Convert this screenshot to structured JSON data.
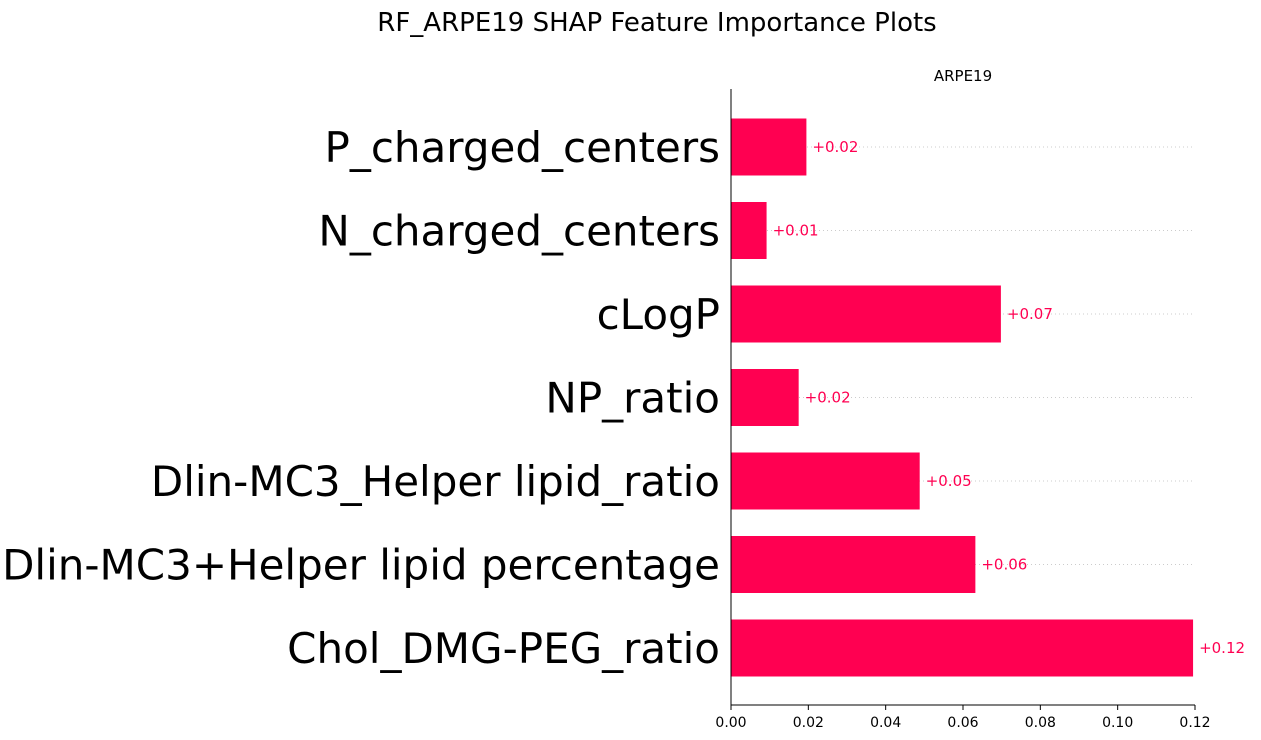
{
  "figure_title": "RF_ARPE19 SHAP Feature Importance Plots",
  "chart_data": {
    "type": "bar",
    "orientation": "horizontal",
    "title": "ARPE19",
    "xlabel": "",
    "ylabel": "",
    "categories": [
      "P_charged_centers",
      "N_charged_centers",
      "cLogP",
      "NP_ratio",
      "Dlin-MC3_Helper lipid_ratio",
      "Dlin-MC3+Helper lipid percentage",
      "Chol_DMG-PEG_ratio"
    ],
    "values": [
      0.0195,
      0.0092,
      0.0698,
      0.0175,
      0.0488,
      0.0632,
      0.1195
    ],
    "value_labels": [
      "+0.02",
      "+0.01",
      "+0.07",
      "+0.02",
      "+0.05",
      "+0.06",
      "+0.12"
    ],
    "xlim": [
      0,
      0.12
    ],
    "xticks": [
      "0.00",
      "0.02",
      "0.04",
      "0.06",
      "0.08",
      "0.10",
      "0.12"
    ],
    "grid": "dotted horizontal guide per bar",
    "legend": "none",
    "colors": {
      "bar": "#ff0051",
      "value_label": "#ff0051",
      "guide": "#cccccc",
      "axis": "#000000"
    }
  }
}
